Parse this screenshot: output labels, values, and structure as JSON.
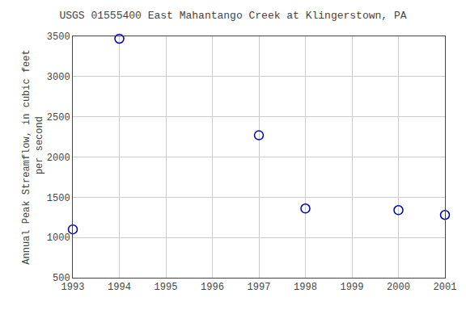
{
  "chart_data": {
    "type": "scatter",
    "title": "USGS 01555400 East Mahantango Creek at Klingerstown, PA",
    "ylabel": "Annual Peak Streamflow, in cubic feet\n    per second",
    "x": [
      1993,
      1994,
      1997,
      1998,
      2000,
      2001
    ],
    "values": [
      1100,
      3470,
      2270,
      1360,
      1340,
      1280
    ],
    "xlim": [
      1993,
      2001
    ],
    "ylim": [
      500,
      3500
    ],
    "xticks": [
      1993,
      1994,
      1995,
      1996,
      1997,
      1998,
      1999,
      2000,
      2001
    ],
    "yticks": [
      500,
      1000,
      1500,
      2000,
      2500,
      3000,
      3500
    ],
    "color": "#0000bb",
    "marker": "circle-open",
    "grid": true
  }
}
